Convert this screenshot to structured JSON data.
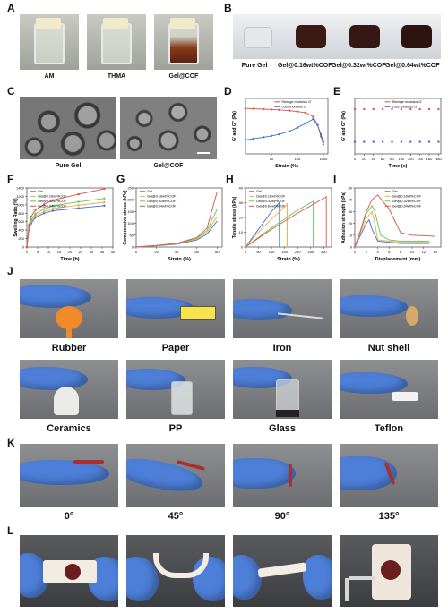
{
  "panels": {
    "A": {
      "label": "A",
      "captions": [
        "AM",
        "THMA",
        "Gel@COF"
      ]
    },
    "B": {
      "label": "B",
      "captions": [
        "Pure Gel",
        "Gel@0.16wt%COF",
        "Gel@0.32wt%COF",
        "Gel@0.64wt%COF"
      ]
    },
    "C": {
      "label": "C",
      "captions": [
        "Pure Gel",
        "Gel@COF"
      ]
    },
    "D": {
      "label": "D"
    },
    "E": {
      "label": "E"
    },
    "F": {
      "label": "F"
    },
    "G": {
      "label": "G"
    },
    "H": {
      "label": "H"
    },
    "I": {
      "label": "I"
    },
    "J": {
      "label": "J",
      "row1": [
        "Rubber",
        "Paper",
        "Iron",
        "Nut shell"
      ],
      "row2": [
        "Ceramics",
        "PP",
        "Glass",
        "Teflon"
      ]
    },
    "K": {
      "label": "K",
      "captions": [
        "0°",
        "45°",
        "90°",
        "135°"
      ]
    },
    "L": {
      "label": "L"
    }
  },
  "colors": {
    "gel": "#3b6fd1",
    "gel016": "#f2a93b",
    "gel032": "#5ac95a",
    "gel064": "#e0504a",
    "storage": "#e0504a",
    "loss": "#3b6fd1"
  },
  "chart_data": [
    {
      "id": "D",
      "type": "line",
      "xlabel": "Strain (%)",
      "ylabel": "G' and G'' (Pa)",
      "x_scale": "log",
      "x_ticks": [
        "10",
        "100",
        "1000"
      ],
      "series": [
        {
          "name": "Storage modulus G'",
          "x": [
            1,
            2,
            5,
            10,
            20,
            50,
            100,
            200,
            400,
            600,
            800,
            1000
          ],
          "y": [
            3200,
            3100,
            3000,
            2900,
            2800,
            2600,
            2400,
            2200,
            1500,
            700,
            250,
            120
          ]
        },
        {
          "name": "Loss modulus G''",
          "x": [
            1,
            2,
            5,
            10,
            20,
            50,
            100,
            200,
            400,
            600,
            800,
            1000
          ],
          "y": [
            180,
            200,
            230,
            260,
            300,
            400,
            550,
            800,
            1200,
            700,
            300,
            150
          ]
        }
      ]
    },
    {
      "id": "E",
      "type": "scatter",
      "xlabel": "Time (s)",
      "ylabel": "G' and G'' (Pa)",
      "x_ticks": [
        "0",
        "20",
        "40",
        "60",
        "80",
        "100",
        "120",
        "140",
        "160",
        "180"
      ],
      "series": [
        {
          "name": "Storage modulus G'",
          "x": [
            0,
            20,
            40,
            60,
            80,
            100,
            120,
            140,
            160,
            180
          ],
          "y": [
            3000,
            3000,
            3000,
            3000,
            3000,
            3000,
            3000,
            3000,
            3000,
            3000
          ]
        },
        {
          "name": "Loss modulus G''",
          "x": [
            0,
            20,
            40,
            60,
            80,
            100,
            120,
            140,
            160,
            180
          ],
          "y": [
            150,
            150,
            150,
            150,
            150,
            150,
            150,
            150,
            150,
            150
          ]
        }
      ]
    },
    {
      "id": "F",
      "type": "line",
      "xlabel": "Time (h)",
      "ylabel": "Swelling Ratio (%)",
      "x_ticks": [
        "0",
        "5",
        "10",
        "15",
        "20",
        "25",
        "30",
        "35",
        "40"
      ],
      "y_ticks": [
        "0",
        "200",
        "400",
        "600",
        "800",
        "1000",
        "1200",
        "1400"
      ],
      "xlim": [
        0,
        40
      ],
      "ylim": [
        0,
        1400
      ],
      "series": [
        {
          "name": "Gel",
          "x": [
            0,
            1,
            2,
            4,
            8,
            12,
            24,
            36
          ],
          "y": [
            0,
            400,
            560,
            700,
            800,
            860,
            920,
            980
          ]
        },
        {
          "name": "Gel@0.16wt%COF",
          "x": [
            0,
            1,
            2,
            4,
            8,
            12,
            24,
            36
          ],
          "y": [
            0,
            430,
            600,
            740,
            840,
            910,
            990,
            1060
          ]
        },
        {
          "name": "Gel@0.32wt%COF",
          "x": [
            0,
            1,
            2,
            4,
            8,
            12,
            24,
            36
          ],
          "y": [
            0,
            460,
            640,
            790,
            900,
            980,
            1070,
            1150
          ]
        },
        {
          "name": "Gel@0.64wt%COF",
          "x": [
            0,
            1,
            2,
            4,
            8,
            12,
            24,
            36
          ],
          "y": [
            0,
            520,
            720,
            880,
            1010,
            1110,
            1250,
            1380
          ]
        }
      ]
    },
    {
      "id": "G",
      "type": "line",
      "xlabel": "Strain (%)",
      "ylabel": "Compressive stress (kPa)",
      "x_ticks": [
        "0",
        "20",
        "40",
        "60",
        "80"
      ],
      "y_ticks": [
        "0",
        "50",
        "100",
        "150",
        "200",
        "250"
      ],
      "xlim": [
        0,
        85
      ],
      "ylim": [
        0,
        250
      ],
      "series": [
        {
          "name": "Gel",
          "x": [
            0,
            20,
            40,
            60,
            70,
            80
          ],
          "y": [
            0,
            5,
            12,
            30,
            55,
            110
          ]
        },
        {
          "name": "Gel@0.16wt%COF",
          "x": [
            0,
            20,
            40,
            60,
            70,
            80
          ],
          "y": [
            0,
            6,
            14,
            34,
            62,
            130
          ]
        },
        {
          "name": "Gel@0.32wt%COF",
          "x": [
            0,
            20,
            40,
            60,
            70,
            80
          ],
          "y": [
            0,
            6,
            15,
            38,
            70,
            160
          ]
        },
        {
          "name": "Gel@0.64wt%COF",
          "x": [
            0,
            20,
            40,
            60,
            70,
            80
          ],
          "y": [
            0,
            7,
            16,
            40,
            80,
            235
          ]
        }
      ]
    },
    {
      "id": "H",
      "type": "line",
      "xlabel": "Strain (%)",
      "ylabel": "Tensile stress (kPa)",
      "x_ticks": [
        "0",
        "50",
        "100",
        "150",
        "200",
        "250",
        "300"
      ],
      "y_ticks": [
        "0",
        "10",
        "20",
        "30",
        "40"
      ],
      "xlim": [
        0,
        330
      ],
      "ylim": [
        0,
        40
      ],
      "series": [
        {
          "name": "Gel",
          "x": [
            0,
            50,
            100,
            130,
            130
          ],
          "y": [
            0,
            12,
            24,
            30,
            0
          ]
        },
        {
          "name": "Gel@0.16wt%COF",
          "x": [
            0,
            50,
            100,
            150,
            160,
            160
          ],
          "y": [
            0,
            10,
            19,
            27,
            29,
            0
          ]
        },
        {
          "name": "Gel@0.32wt%COF",
          "x": [
            0,
            100,
            200,
            260,
            260
          ],
          "y": [
            0,
            13,
            25,
            31,
            0
          ]
        },
        {
          "name": "Gel@0.64wt%COF",
          "x": [
            0,
            100,
            200,
            300,
            310,
            310
          ],
          "y": [
            0,
            12,
            23,
            33,
            34,
            0
          ]
        }
      ]
    },
    {
      "id": "I",
      "type": "line",
      "xlabel": "Displacement (mm)",
      "ylabel": "Adhesion strength (kPa)",
      "x_ticks": [
        "0",
        "2",
        "4",
        "6",
        "8",
        "10",
        "12",
        "14"
      ],
      "y_ticks": [
        "0",
        "10",
        "20",
        "30",
        "40",
        "50"
      ],
      "xlim": [
        0,
        15
      ],
      "ylim": [
        0,
        50
      ],
      "series": [
        {
          "name": "Gel",
          "x": [
            0,
            1,
            2,
            2.5,
            3,
            4,
            6,
            8,
            10,
            13
          ],
          "y": [
            0,
            10,
            20,
            23,
            15,
            5,
            4,
            3,
            3,
            3
          ]
        },
        {
          "name": "Gel@0.16wt%COF",
          "x": [
            0,
            1,
            2,
            3,
            3.5,
            4,
            6,
            8,
            10,
            13
          ],
          "y": [
            0,
            12,
            24,
            30,
            20,
            6,
            5,
            4,
            4,
            4
          ]
        },
        {
          "name": "Gel@0.32wt%COF",
          "x": [
            0,
            1,
            2,
            3,
            3.5,
            4.5,
            6,
            8,
            10,
            13
          ],
          "y": [
            0,
            14,
            28,
            35,
            30,
            10,
            6,
            5,
            5,
            5
          ]
        },
        {
          "name": "Gel@0.64wt%COF",
          "x": [
            0,
            1,
            2,
            3,
            4,
            5,
            6,
            7,
            8,
            10,
            14
          ],
          "y": [
            0,
            14,
            30,
            40,
            44,
            38,
            32,
            22,
            12,
            10,
            9
          ]
        }
      ]
    }
  ]
}
